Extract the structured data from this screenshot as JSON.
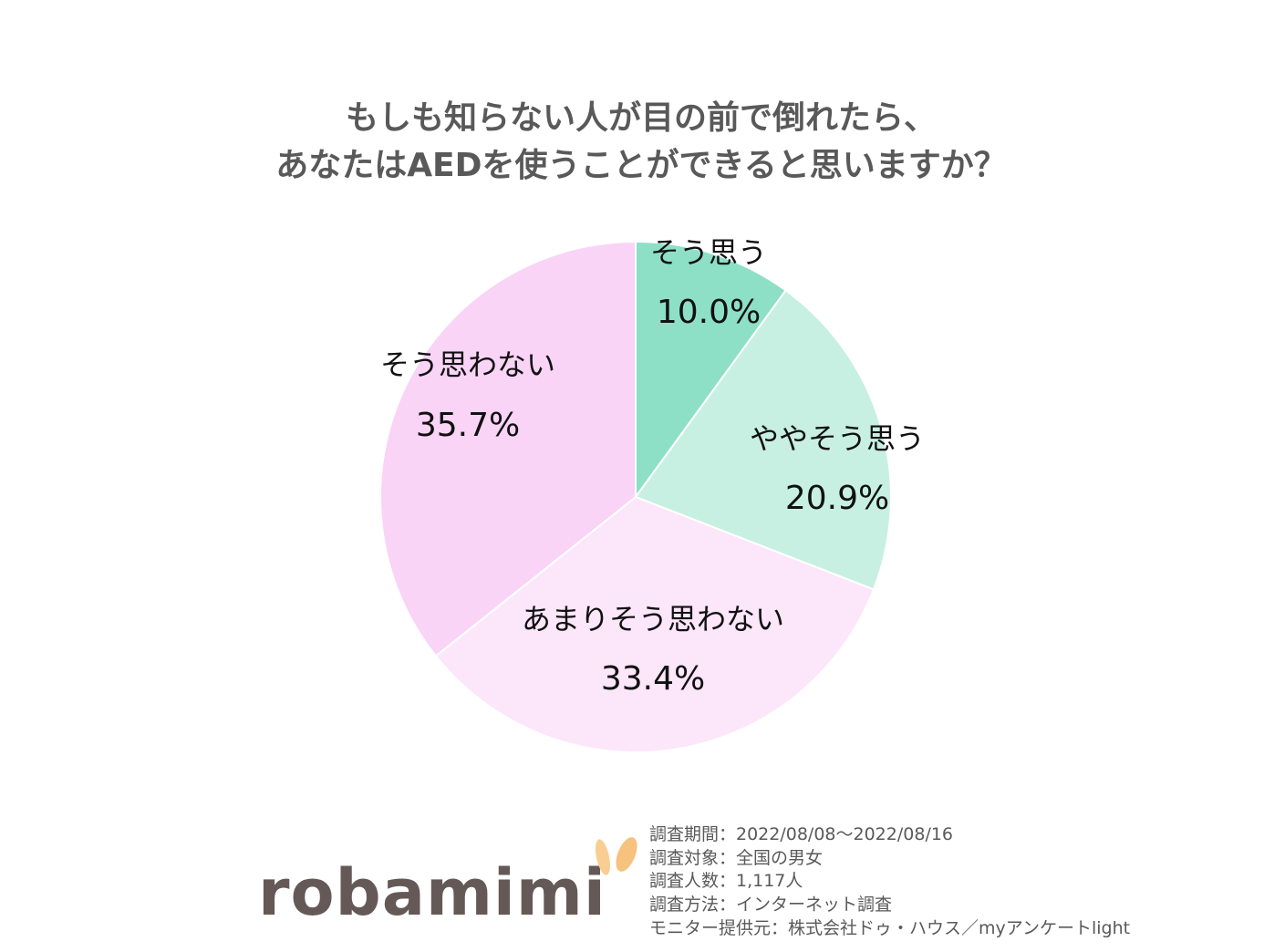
{
  "chart_data": {
    "type": "pie",
    "title": [
      "もしも知らない人が目の前で倒れたら、",
      "あなたはAEDを使うことができると思いますか？"
    ],
    "categories": [
      "そう思う",
      "ややそう思う",
      "あまりそう思わない",
      "そう思わない"
    ],
    "values": [
      10.0,
      20.9,
      33.4,
      35.7
    ],
    "data_labels": [
      "10.0%",
      "20.9%",
      "33.4%",
      "35.7%"
    ],
    "colors": [
      "#8DE0C5",
      "#C8F0E2",
      "#FCE6FA",
      "#F9D4F6"
    ],
    "legend": "none"
  },
  "footer": {
    "logo": {
      "text": "robamimi",
      "icon": "donkey-ears-icon",
      "text_color": "#655958",
      "ear_color": "#F7C88A"
    },
    "notes": [
      "調査期間：2022/08/08～2022/08/16",
      "調査対象：全国の男女",
      "調査人数：1,117人",
      "調査方法：インターネット調査",
      "モニター提供元：株式会社ドゥ・ハウス／myアンケートlight"
    ]
  }
}
